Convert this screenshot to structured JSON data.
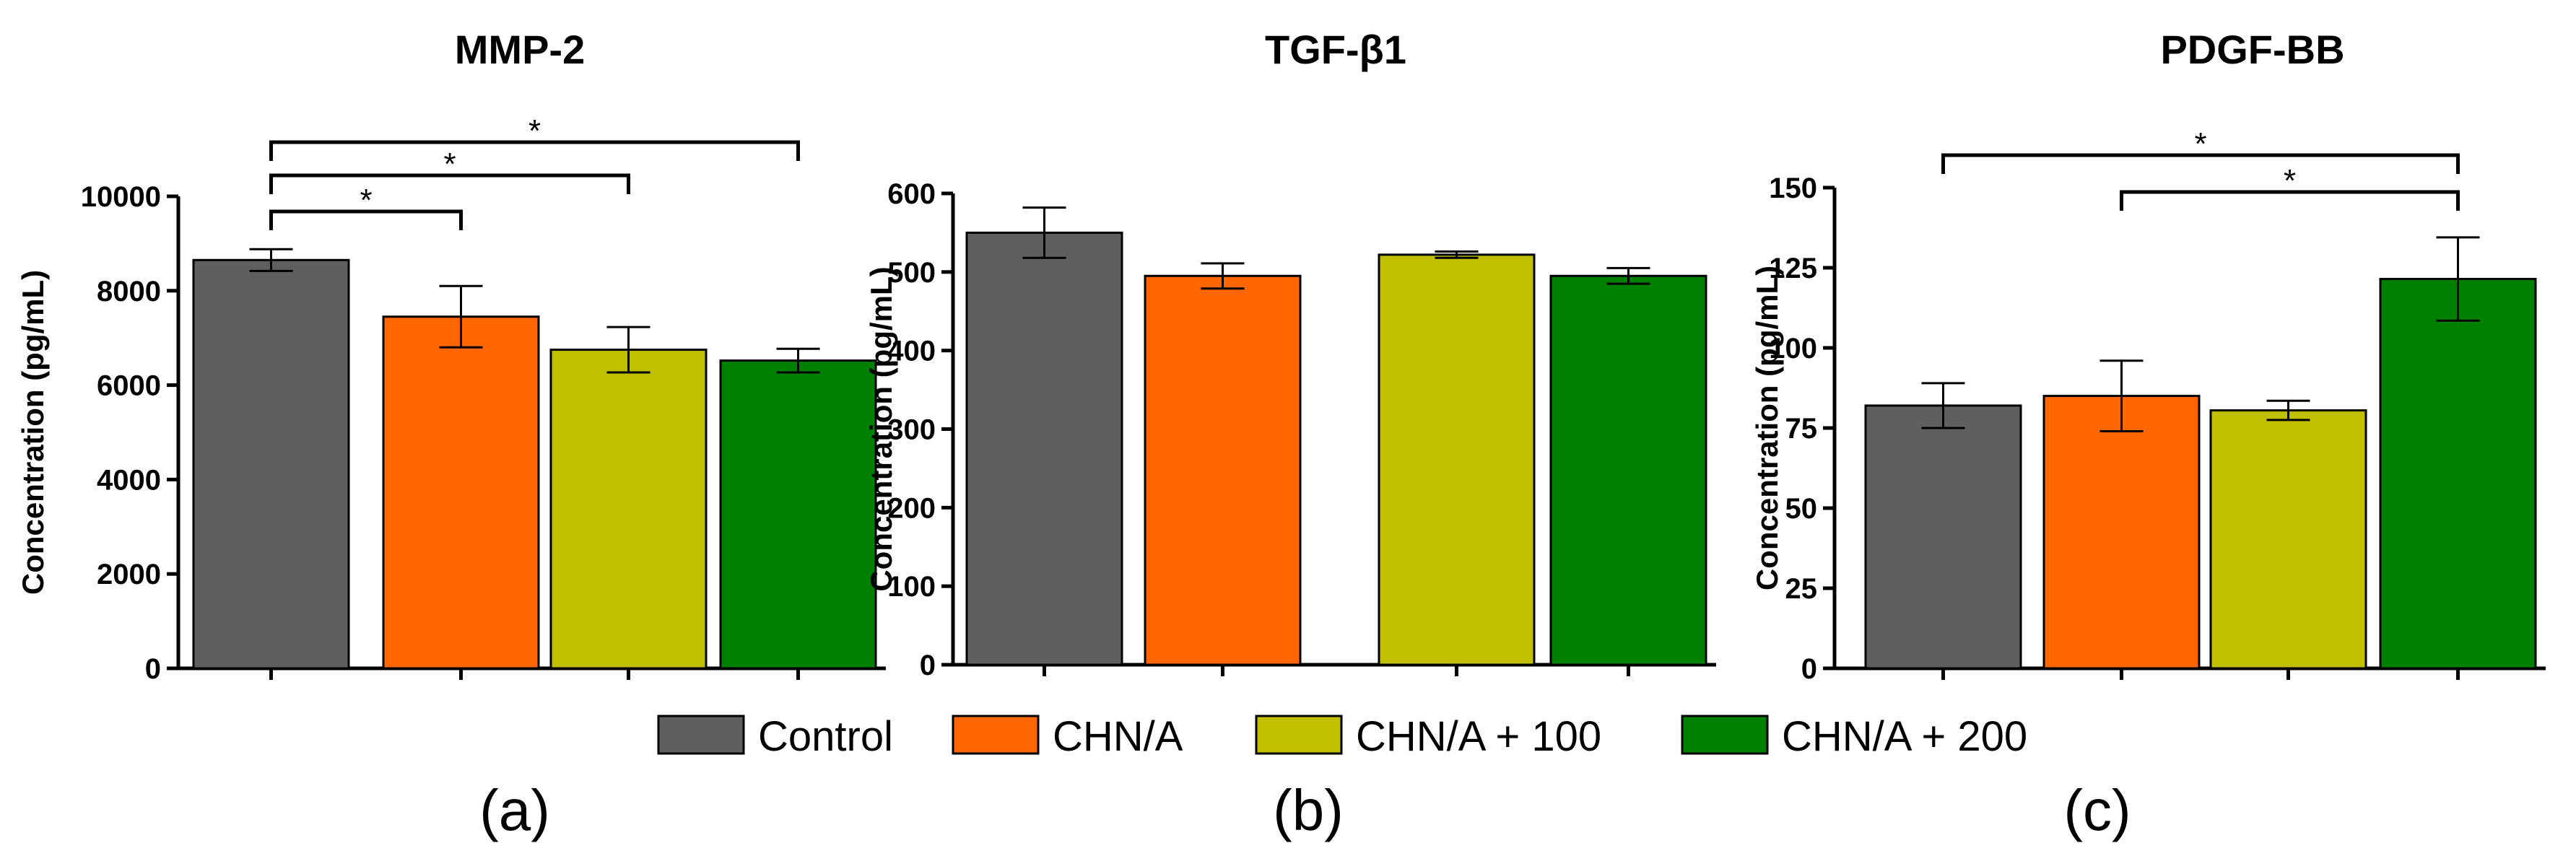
{
  "legend": [
    {
      "label": "Control",
      "color": "#5f5f5f"
    },
    {
      "label": "CHN/A",
      "color": "#ff6600"
    },
    {
      "label": "CHN/A + 100",
      "color": "#c0c000"
    },
    {
      "label": "CHN/A + 200",
      "color": "#008000"
    }
  ],
  "chart_data": [
    {
      "type": "bar",
      "title": "MMP-2",
      "panel_label": "(a)",
      "ylabel": "Concentration (pg/mL)",
      "categories": [
        "Control",
        "CHN/A",
        "CHN/A + 100",
        "CHN/A + 200"
      ],
      "values": [
        8650,
        7450,
        6750,
        6520
      ],
      "errors": [
        230,
        650,
        480,
        250
      ],
      "ylim": [
        0,
        10000
      ],
      "yticks": [
        0,
        2000,
        4000,
        6000,
        8000,
        10000
      ],
      "ytick_labels": [
        "0",
        "2000",
        "4000",
        "6000",
        "8000",
        "10000"
      ],
      "significance": [
        {
          "from": 0,
          "to": 1,
          "label": "*"
        },
        {
          "from": 0,
          "to": 2,
          "label": "*"
        },
        {
          "from": 0,
          "to": 3,
          "label": "*"
        }
      ]
    },
    {
      "type": "bar",
      "title": "TGF-β1",
      "panel_label": "(b)",
      "ylabel": "Concentration (pg/mL)",
      "categories": [
        "Control",
        "CHN/A",
        "CHN/A + 100",
        "CHN/A + 200"
      ],
      "values": [
        550,
        495,
        522,
        495
      ],
      "errors": [
        32,
        16,
        4,
        10
      ],
      "ylim": [
        0,
        600
      ],
      "yticks": [
        0,
        100,
        200,
        300,
        400,
        500,
        600
      ],
      "ytick_labels": [
        "0",
        "100",
        "200",
        "300",
        "400",
        "500",
        "600"
      ],
      "significance": []
    },
    {
      "type": "bar",
      "title": "PDGF-BB",
      "panel_label": "(c)",
      "ylabel": "Concentration (pg/mL)",
      "categories": [
        "Control",
        "CHN/A",
        "CHN/A + 100",
        "CHN/A + 200"
      ],
      "values": [
        82,
        85,
        80.5,
        121.5
      ],
      "errors": [
        7,
        11,
        3,
        13
      ],
      "ylim": [
        0,
        150
      ],
      "yticks": [
        0,
        25,
        50,
        75,
        100,
        125,
        150
      ],
      "ytick_labels": [
        "0",
        "25",
        "50",
        "75",
        "100",
        "125",
        "150"
      ],
      "significance": [
        {
          "from": 0,
          "to": 3,
          "label": "*"
        },
        {
          "from": 1,
          "to": 3,
          "label": "*"
        }
      ]
    }
  ]
}
